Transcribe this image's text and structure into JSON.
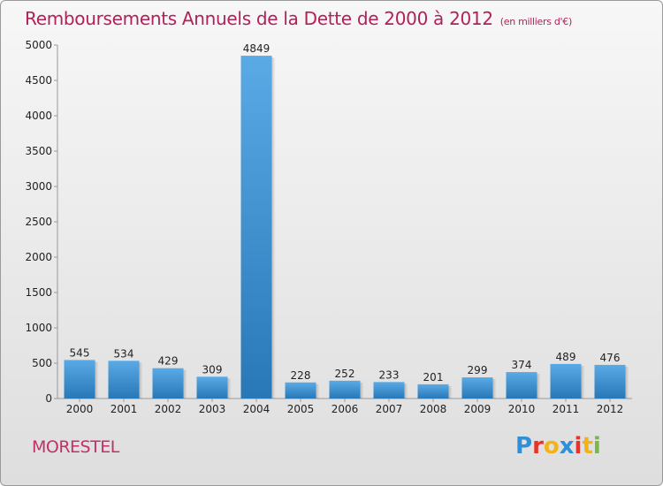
{
  "header": {
    "title": "Remboursements Annuels de la Dette de 2000 à 2012",
    "subtitle": "(en milliers d'€)"
  },
  "footer": {
    "city": "MORESTEL",
    "logo": {
      "letters": [
        "P",
        "r",
        "o",
        "x",
        "i",
        "t",
        "i"
      ],
      "colors": [
        "#2f8fd8",
        "#e8332a",
        "#f3b21a",
        "#2f8fd8",
        "#e8332a",
        "#f3b21a",
        "#7ab648"
      ]
    }
  },
  "chart_data": {
    "type": "bar",
    "title": "Remboursements Annuels de la Dette de 2000 à 2012",
    "subtitle": "(en milliers d'€)",
    "categories": [
      "2000",
      "2001",
      "2002",
      "2003",
      "2004",
      "2005",
      "2006",
      "2007",
      "2008",
      "2009",
      "2010",
      "2011",
      "2012"
    ],
    "values": [
      545,
      534,
      429,
      309,
      4849,
      228,
      252,
      233,
      201,
      299,
      374,
      489,
      476
    ],
    "ylim": [
      0,
      5000
    ],
    "yticks": [
      0,
      500,
      1000,
      1500,
      2000,
      2500,
      3000,
      3500,
      4000,
      4500,
      5000
    ],
    "grid": false,
    "colors": {
      "bar_top": "#5aaae6",
      "bar_bottom": "#2878b8",
      "axis": "#999999"
    }
  }
}
